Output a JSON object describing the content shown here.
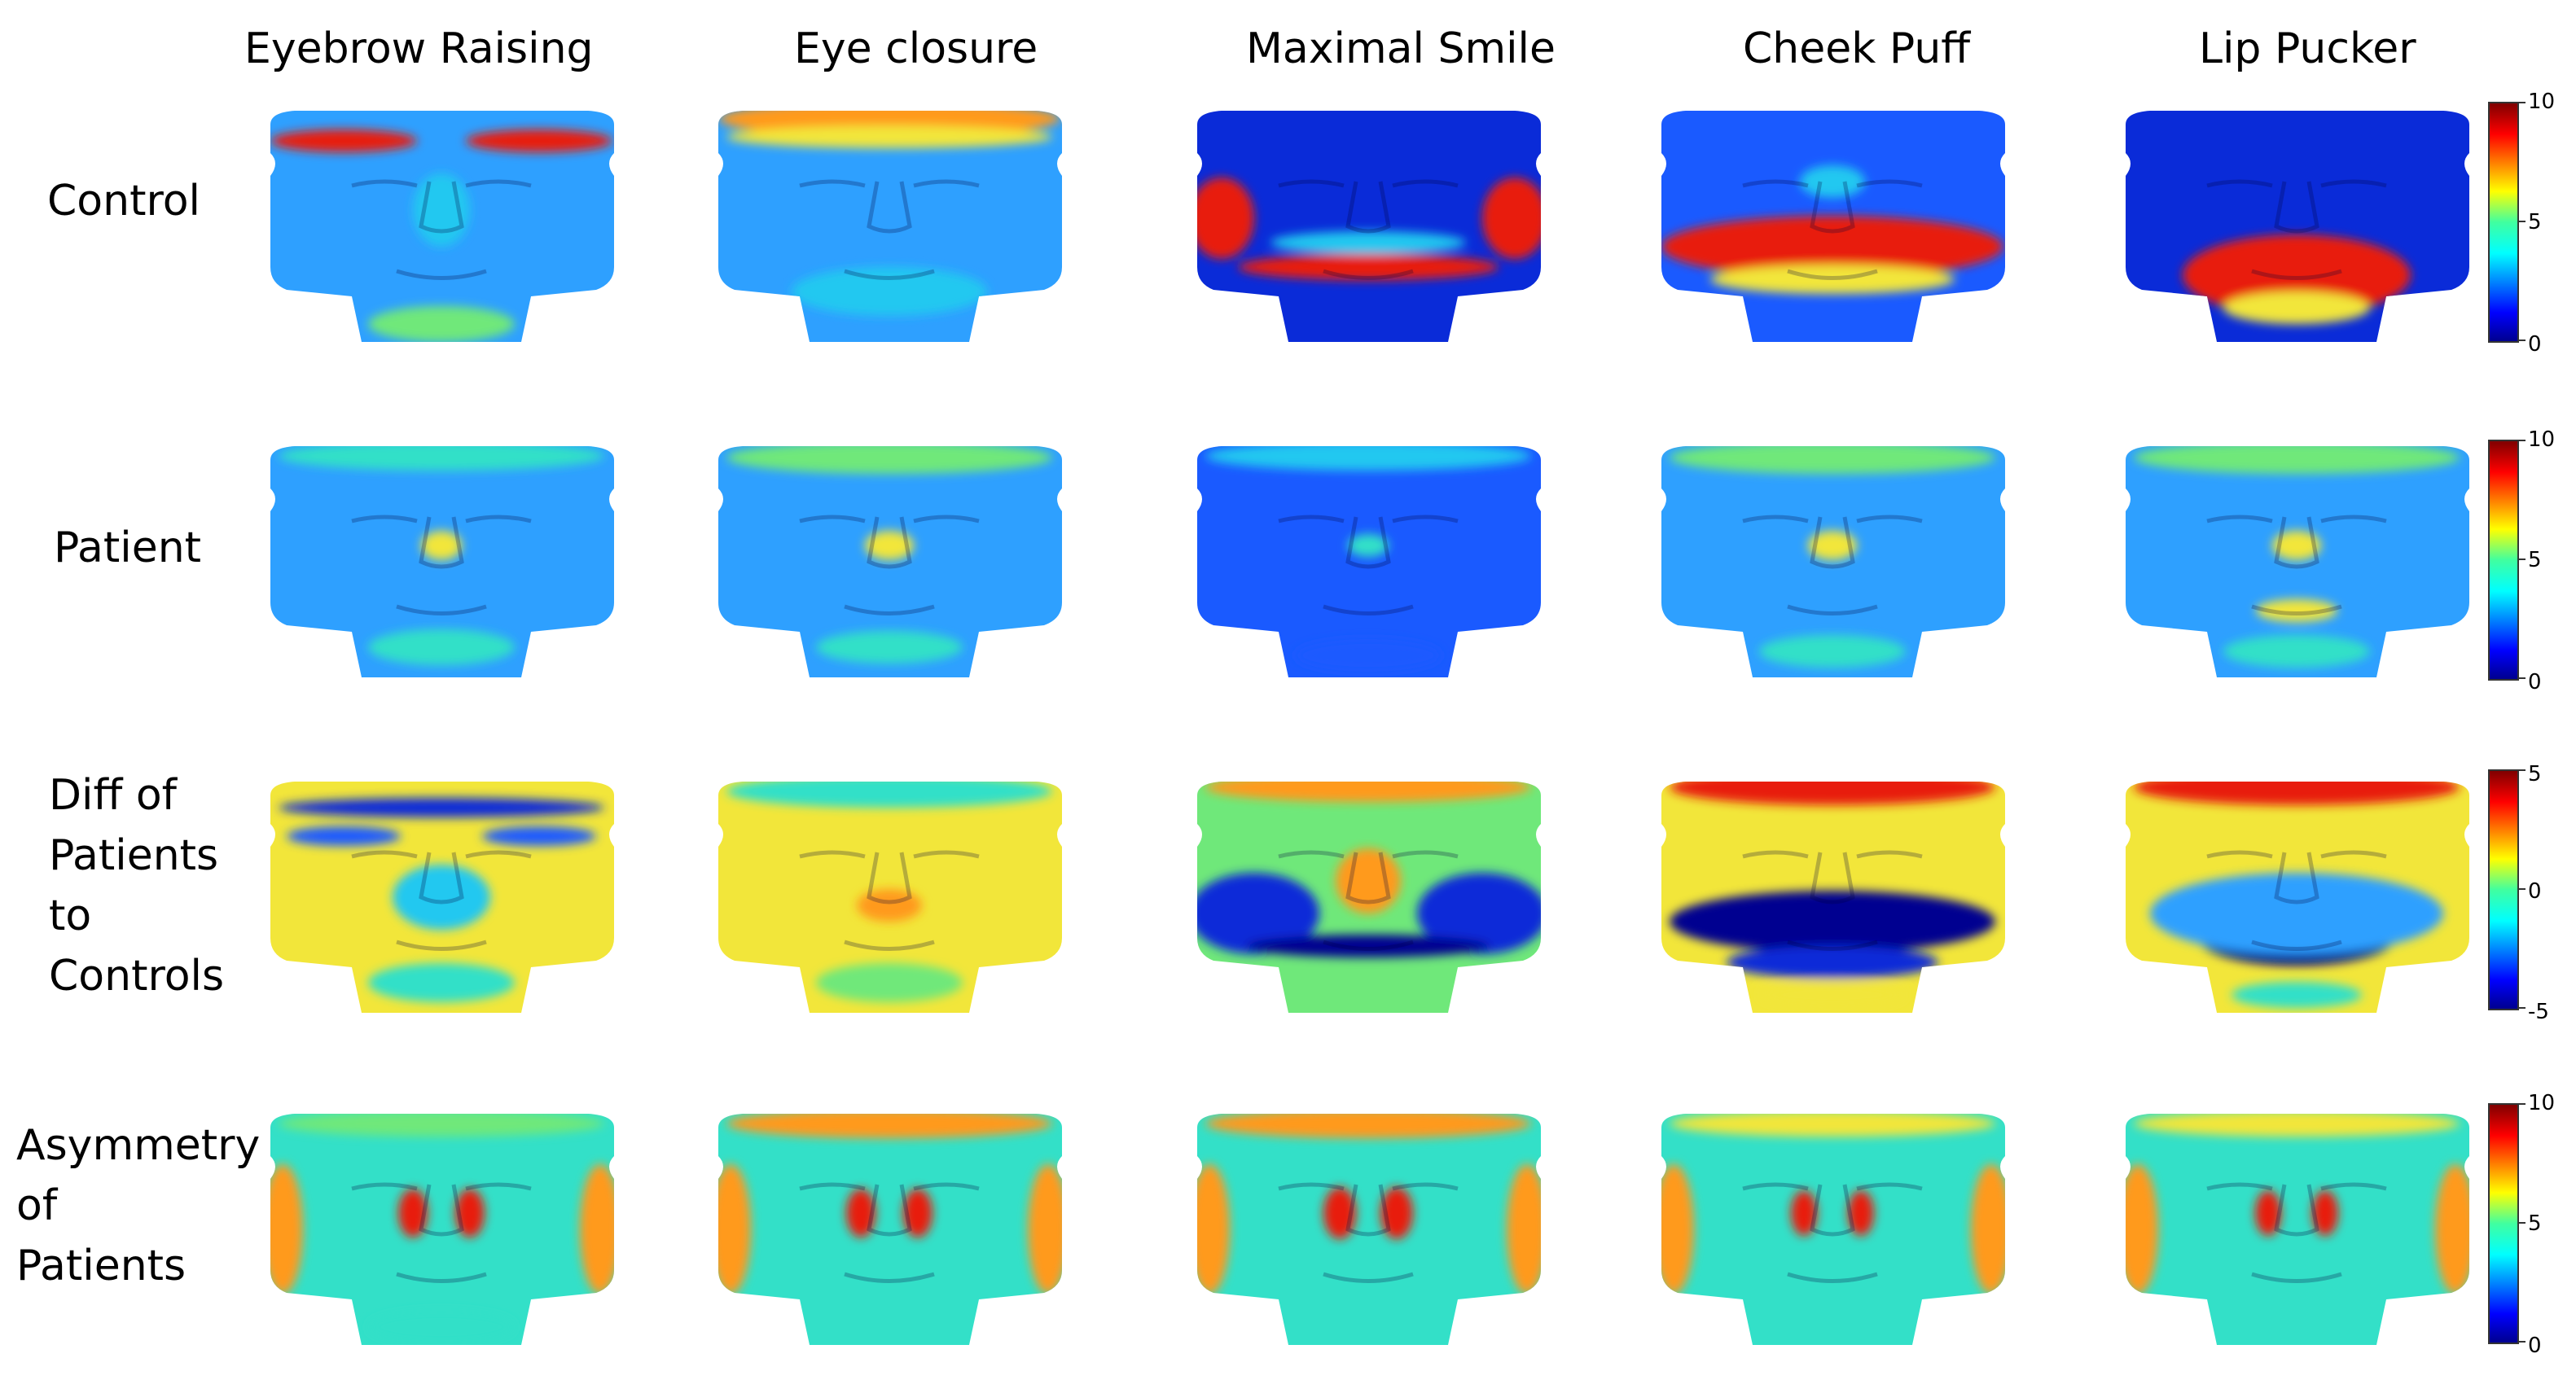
{
  "columns": [
    "Eyebrow Raising",
    "Eye closure",
    "Maximal Smile",
    "Cheek Puff",
    "Lip Pucker"
  ],
  "rows": {
    "control": [
      "Control"
    ],
    "patient": [
      "Patient"
    ],
    "diff": [
      "Diff of",
      "Patients",
      "to",
      "Controls"
    ],
    "asym": [
      "Asymmetry",
      "of",
      "Patients"
    ]
  },
  "colorbars": [
    {
      "max": "10",
      "mid": "5",
      "min": "0"
    },
    {
      "max": "10",
      "mid": "5",
      "min": "0"
    },
    {
      "max": "5",
      "mid": "0",
      "min": "-5"
    },
    {
      "max": "10",
      "mid": "5",
      "min": "0"
    }
  ],
  "colormap": "jet",
  "colors": {
    "low": "#00008f",
    "mid": "#1fe3c8",
    "high": "#800000"
  }
}
